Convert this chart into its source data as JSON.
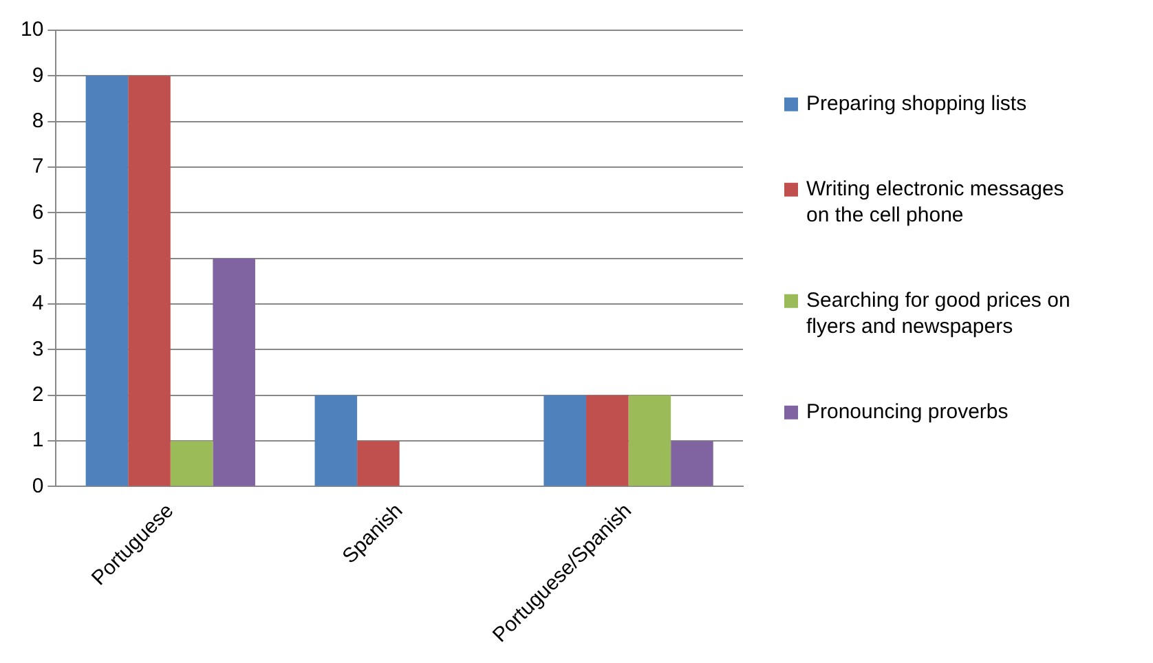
{
  "chart_data": {
    "type": "bar",
    "categories": [
      "Portuguese",
      "Spanish",
      "Portuguese/Spanish"
    ],
    "series": [
      {
        "name": "Preparing shopping lists",
        "color": "#4f81bd",
        "values": [
          9,
          2,
          2
        ]
      },
      {
        "name": "Writing electronic messages on the cell phone",
        "color": "#c0504d",
        "values": [
          9,
          1,
          2
        ]
      },
      {
        "name": "Searching for good prices on flyers and newspapers",
        "color": "#9bbb59",
        "values": [
          1,
          0,
          2
        ]
      },
      {
        "name": "Pronouncing proverbs",
        "color": "#8064a2",
        "values": [
          5,
          0,
          1
        ]
      }
    ],
    "ylim": [
      0,
      10
    ],
    "yticks": [
      0,
      1,
      2,
      3,
      4,
      5,
      6,
      7,
      8,
      9,
      10
    ],
    "grid": "y",
    "legend": "right"
  }
}
